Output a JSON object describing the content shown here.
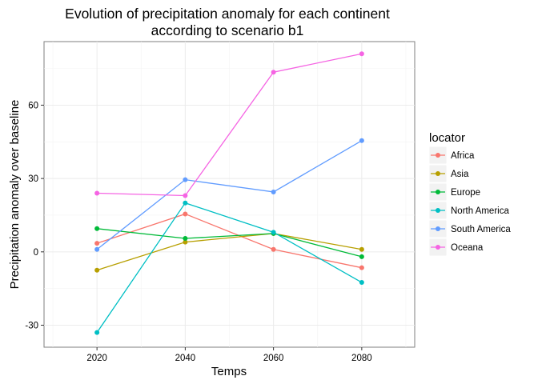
{
  "chart_data": {
    "type": "line",
    "title": [
      "Evolution of precipitation anomaly for each continent",
      "according to scenario b1"
    ],
    "xlabel": "Temps",
    "ylabel": "Precipitation anomaly over baseline",
    "x": [
      2020,
      2040,
      2060,
      2080
    ],
    "xlim": [
      2008,
      2092
    ],
    "ylim": [
      -39,
      86
    ],
    "xticks": [
      2020,
      2040,
      2060,
      2080
    ],
    "yticks": [
      -30,
      0,
      30,
      60
    ],
    "grid": true,
    "legend": {
      "title": "locator",
      "position": "right"
    },
    "series": [
      {
        "name": "Africa",
        "color": "#F8766D",
        "values": [
          3.5,
          15.5,
          1.0,
          -6.5
        ]
      },
      {
        "name": "Asia",
        "color": "#B79F00",
        "values": [
          -7.5,
          4.0,
          7.5,
          1.0
        ]
      },
      {
        "name": "Europe",
        "color": "#00BA38",
        "values": [
          9.5,
          5.5,
          7.5,
          -2.0
        ]
      },
      {
        "name": "North America",
        "color": "#00BFC4",
        "values": [
          -33.0,
          20.0,
          8.0,
          -12.5
        ]
      },
      {
        "name": "South America",
        "color": "#619CFF",
        "values": [
          1.0,
          29.5,
          24.5,
          45.5
        ]
      },
      {
        "name": "Oceana",
        "color": "#F564E3",
        "values": [
          24.0,
          23.0,
          73.5,
          81.0
        ]
      }
    ]
  }
}
